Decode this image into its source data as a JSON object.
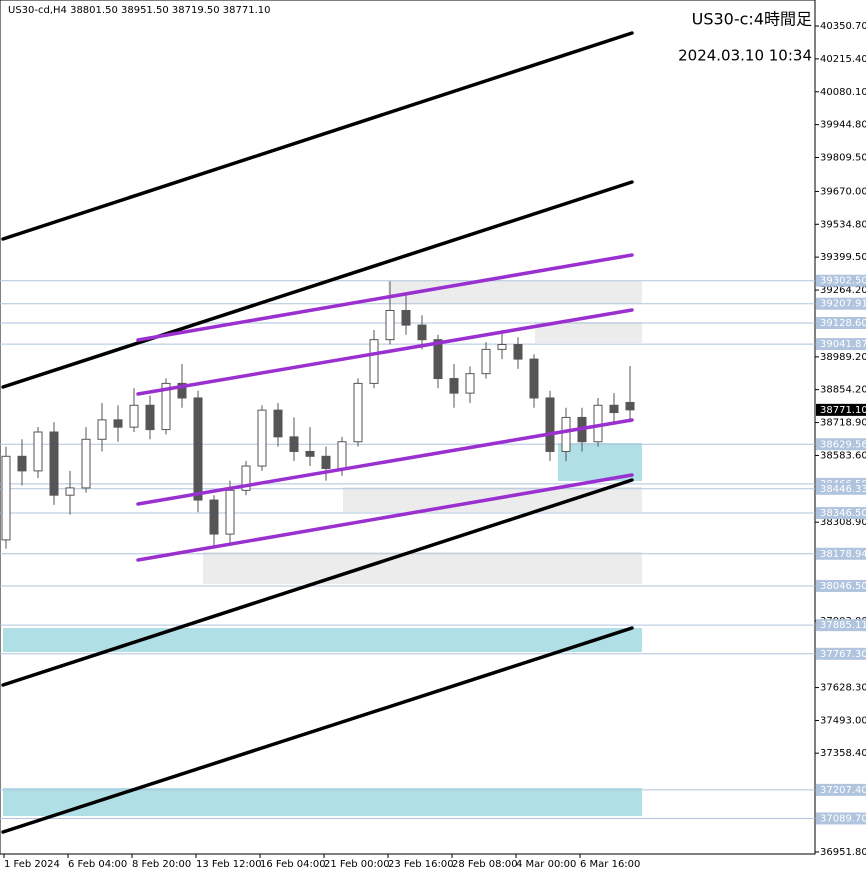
{
  "header": "US30-cd,H4  38801.50 38951.50 38719.50 38771.10",
  "chart_data": {
    "type": "candlestick",
    "title": "US30-c:4時間足",
    "subtitle": "2024.03.10 10:34",
    "x_labels": [
      "1 Feb 2024",
      "6 Feb 04:00",
      "8 Feb 20:00",
      "13 Feb 12:00",
      "16 Feb 04:00",
      "21 Feb 00:00",
      "23 Feb 16:00",
      "28 Feb 08:00",
      "4 Mar 00:00",
      "6 Mar 16:00"
    ],
    "open": [
      38236,
      38580,
      38520,
      38680,
      38420,
      38450,
      38650,
      38730,
      38700,
      38790,
      38690,
      38880,
      38820,
      38400,
      38260,
      38440,
      38540,
      38770,
      38660,
      38600,
      38580,
      38530,
      38640,
      38880,
      39060,
      39180,
      39120,
      39060,
      38900,
      38840,
      38920,
      39020,
      39040,
      38980,
      38820,
      38600,
      38740,
      38640,
      38790,
      38801.5
    ],
    "high": [
      38620,
      38650,
      38700,
      38720,
      38520,
      38700,
      38800,
      38790,
      38860,
      38830,
      38900,
      38960,
      38850,
      38420,
      38480,
      38560,
      38790,
      38800,
      38740,
      38700,
      38620,
      38660,
      38900,
      39100,
      39300,
      39250,
      39160,
      39080,
      38960,
      38950,
      39050,
      39100,
      39070,
      39000,
      38850,
      38780,
      38780,
      38820,
      38840,
      38951.5
    ],
    "low": [
      38200,
      38460,
      38490,
      38380,
      38340,
      38430,
      38600,
      38640,
      38680,
      38650,
      38670,
      38780,
      38350,
      38200,
      38220,
      38420,
      38520,
      38620,
      38560,
      38540,
      38480,
      38500,
      38620,
      38860,
      39040,
      39080,
      39020,
      38860,
      38780,
      38800,
      38900,
      38980,
      38940,
      38780,
      38560,
      38560,
      38600,
      38620,
      38720,
      38719.5
    ],
    "close": [
      38580,
      38520,
      38680,
      38420,
      38450,
      38650,
      38730,
      38700,
      38790,
      38690,
      38880,
      38820,
      38400,
      38260,
      38440,
      38540,
      38770,
      38660,
      38600,
      38580,
      38530,
      38640,
      38880,
      39060,
      39180,
      39120,
      39060,
      38900,
      38840,
      38920,
      39020,
      39040,
      38980,
      38820,
      38600,
      38740,
      38640,
      38790,
      38760,
      38771.1
    ],
    "bull_color": "#ffffff",
    "bear_color": "#555555",
    "ylim": [
      36943.5,
      40457.7
    ],
    "yticks": [
      {
        "value": 40350.7,
        "label": "40350.70"
      },
      {
        "value": 40215.4,
        "label": "40215.40"
      },
      {
        "value": 40080.1,
        "label": "40080.10"
      },
      {
        "value": 39944.8,
        "label": "39944.80"
      },
      {
        "value": 39809.5,
        "label": "39809.50"
      },
      {
        "value": 39670,
        "label": "39670.00"
      },
      {
        "value": 39534.8,
        "label": "39534.80"
      },
      {
        "value": 39399.5,
        "label": "39399.50"
      },
      {
        "value": 39264.2,
        "label": "39264.20"
      },
      {
        "value": 38989.2,
        "label": "38989.20"
      },
      {
        "value": 38854.2,
        "label": "38854.20"
      },
      {
        "value": 38718.9,
        "label": "38718.90"
      },
      {
        "value": 38583.6,
        "label": "38583.60"
      },
      {
        "value": 38308.9,
        "label": "38308.90"
      },
      {
        "value": 37903,
        "label": "37903.00"
      },
      {
        "value": 37628.3,
        "label": "37628.30"
      },
      {
        "value": 37493,
        "label": "37493.00"
      },
      {
        "value": 37358.4,
        "label": "37358.40"
      },
      {
        "value": 36951.8,
        "label": "36951.80"
      }
    ],
    "levels": [
      {
        "value": 39302.5,
        "label": "39302.50"
      },
      {
        "value": 39207.91,
        "label": "39207.91"
      },
      {
        "value": 39128.6,
        "label": "39128.60"
      },
      {
        "value": 39041.87,
        "label": "39041.87"
      },
      {
        "value": 38629.56,
        "label": "38629.56"
      },
      {
        "value": 38466.5,
        "label": "38466.50"
      },
      {
        "value": 38446.33,
        "label": "38446.33"
      },
      {
        "value": 38346.5,
        "label": "38346.50"
      },
      {
        "value": 38178.94,
        "label": "38178.94"
      },
      {
        "value": 38046.5,
        "label": "38046.50"
      },
      {
        "value": 37885.11,
        "label": "37885.11"
      },
      {
        "value": 37767.3,
        "label": "37767.30"
      },
      {
        "value": 37207.4,
        "label": "37207.40"
      },
      {
        "value": 37089.7,
        "label": "37089.70"
      }
    ],
    "level_color": "#b0c4de",
    "current_price": {
      "value": 38771.1,
      "label": "38771.10"
    }
  }
}
